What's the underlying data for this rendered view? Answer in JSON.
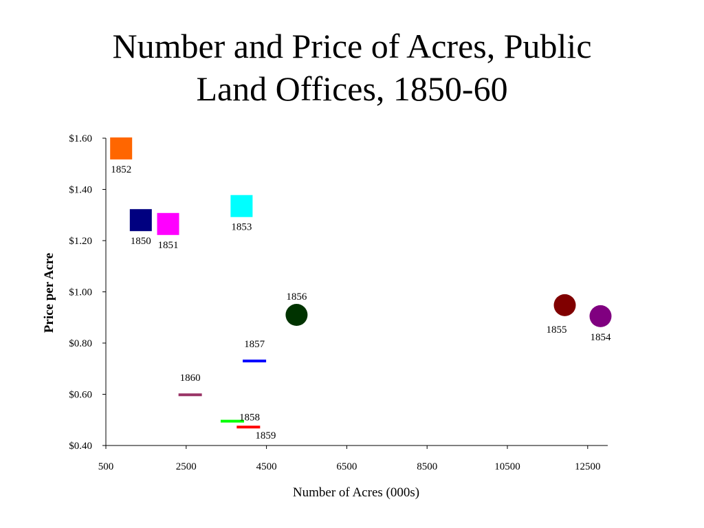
{
  "title_lines": [
    "Number and Price of Acres, Public",
    "Land Offices, 1850-60"
  ],
  "chart_data": {
    "type": "scatter",
    "xlabel": "Number of Acres (000s)",
    "ylabel": "Price per Acre",
    "xlim": [
      500,
      13000
    ],
    "ylim": [
      0.4,
      1.6
    ],
    "xticks": [
      500,
      2500,
      4500,
      6500,
      8500,
      10500,
      12500
    ],
    "xtick_labels": [
      "500",
      "2500",
      "4500",
      "6500",
      "8500",
      "10500",
      "12500"
    ],
    "yticks": [
      0.4,
      0.6,
      0.8,
      1.0,
      1.2,
      1.4,
      1.6
    ],
    "ytick_labels": [
      "$0.40",
      "$0.60",
      "$0.80",
      "$1.00",
      "$1.20",
      "$1.40",
      "$1.60"
    ],
    "grid": false,
    "points": [
      {
        "label": "1850",
        "x": 1370,
        "y": 1.28,
        "marker": "square",
        "color": "#000080",
        "label_pos": "below"
      },
      {
        "label": "1851",
        "x": 2050,
        "y": 1.265,
        "marker": "square",
        "color": "#ff00ff",
        "label_pos": "below"
      },
      {
        "label": "1852",
        "x": 880,
        "y": 1.56,
        "marker": "square",
        "color": "#ff6600",
        "label_pos": "below"
      },
      {
        "label": "1853",
        "x": 3880,
        "y": 1.335,
        "marker": "square",
        "color": "#00ffff",
        "label_pos": "below"
      },
      {
        "label": "1854",
        "x": 12820,
        "y": 0.905,
        "marker": "circle",
        "color": "#800080",
        "label_pos": "below"
      },
      {
        "label": "1855",
        "x": 11930,
        "y": 0.948,
        "marker": "circle",
        "color": "#800000",
        "label_pos": "below-left"
      },
      {
        "label": "1856",
        "x": 5250,
        "y": 0.91,
        "marker": "circle",
        "color": "#003300",
        "label_pos": "above"
      },
      {
        "label": "1857",
        "x": 4200,
        "y": 0.73,
        "marker": "dash",
        "color": "#0000ff",
        "label_pos": "above"
      },
      {
        "label": "1858",
        "x": 3650,
        "y": 0.495,
        "marker": "dash",
        "color": "#00ff00",
        "label_pos": "right"
      },
      {
        "label": "1859",
        "x": 4050,
        "y": 0.472,
        "marker": "dash",
        "color": "#ff0000",
        "label_pos": "below-right"
      },
      {
        "label": "1860",
        "x": 2600,
        "y": 0.598,
        "marker": "dash",
        "color": "#993366",
        "label_pos": "above"
      }
    ]
  }
}
